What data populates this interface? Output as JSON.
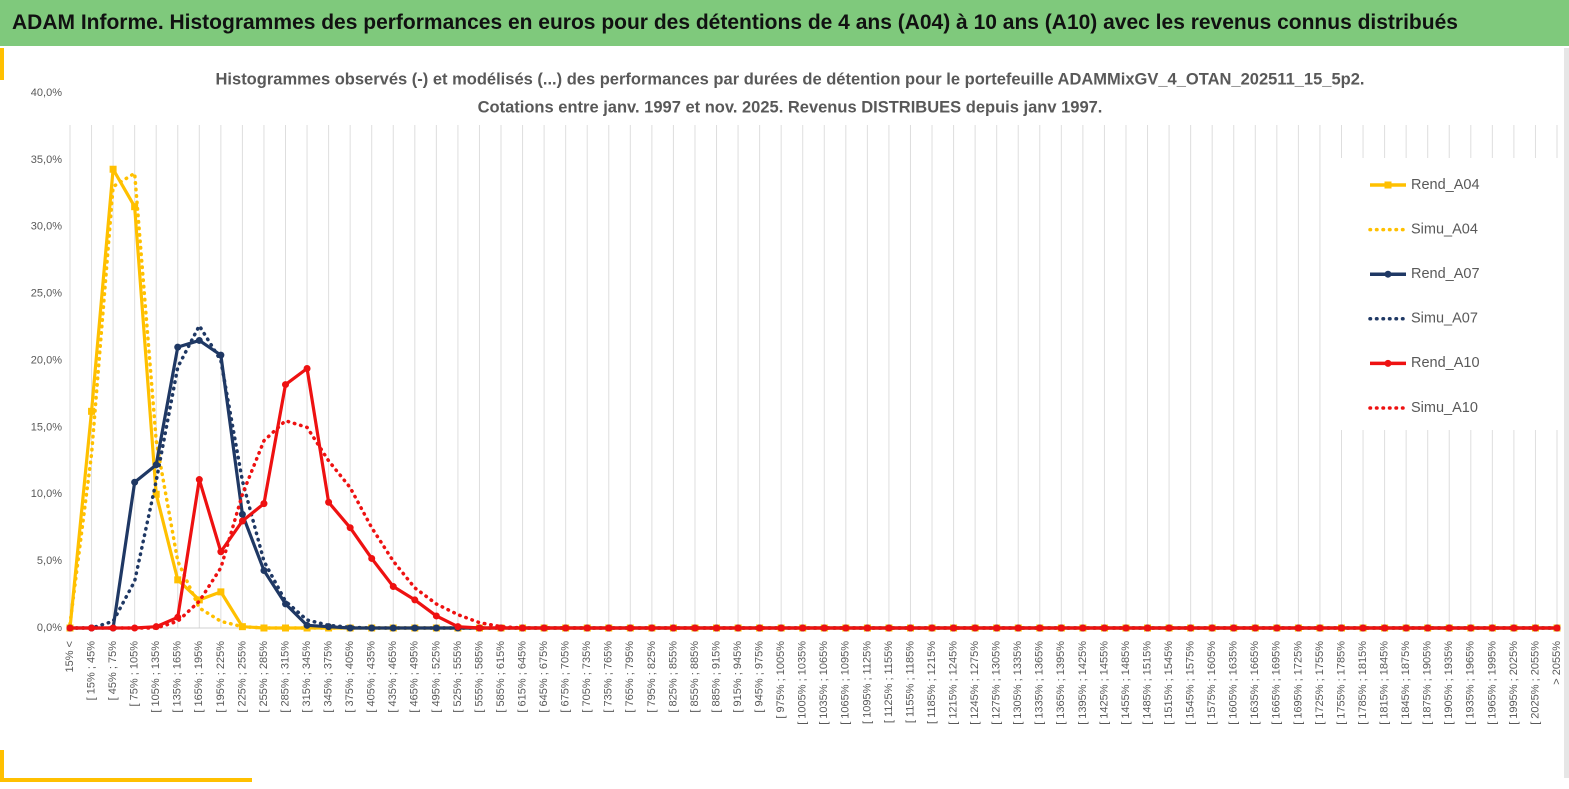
{
  "header": {
    "title": "ADAM Informe. Histogrammes des performances en euros pour des détentions de 4 ans (A04) à 10 ans (A10) avec les revenus connus distribués"
  },
  "chart_data": {
    "type": "line",
    "title": "Histogrammes observés (-) et modélisés (...) des performances par durées de détention pour le portefeuille ADAMMixGV_4_OTAN_202511_15_5p2.",
    "subtitle": "Cotations entre janv. 1997 et nov. 2025. Revenus DISTRIBUES depuis janv 1997.",
    "categories": [
      "15% <",
      "[ 15% ; 45%",
      "[ 45% ; 75%",
      "[ 75% ; 105%",
      "[ 105% ; 135%",
      "[ 135% ; 165%",
      "[ 165% ; 195%",
      "[ 195% ; 225%",
      "[ 225% ; 255%",
      "[ 255% ; 285%",
      "[ 285% ; 315%",
      "[ 315% ; 345%",
      "[ 345% ; 375%",
      "[ 375% ; 405%",
      "[ 405% ; 435%",
      "[ 435% ; 465%",
      "[ 465% ; 495%",
      "[ 495% ; 525%",
      "[ 525% ; 555%",
      "[ 555% ; 585%",
      "[ 585% ; 615%",
      "[ 615% ; 645%",
      "[ 645% ; 675%",
      "[ 675% ; 705%",
      "[ 705% ; 735%",
      "[ 735% ; 765%",
      "[ 765% ; 795%",
      "[ 795% ; 825%",
      "[ 825% ; 855%",
      "[ 855% ; 885%",
      "[ 885% ; 915%",
      "[ 915% ; 945%",
      "[ 945% ; 975%",
      "[ 975% ; 1005%",
      "[ 1005% ; 1035%",
      "[ 1035% ; 1065%",
      "[ 1065% ; 1095%",
      "[ 1095% ; 1125%",
      "[ 1125% ; 1155%",
      "[ 1155% ; 1185%",
      "[ 1185% ; 1215%",
      "[ 1215% ; 1245%",
      "[ 1245% ; 1275%",
      "[ 1275% ; 1305%",
      "[ 1305% ; 1335%",
      "[ 1335% ; 1365%",
      "[ 1365% ; 1395%",
      "[ 1395% ; 1425%",
      "[ 1425% ; 1455%",
      "[ 1455% ; 1485%",
      "[ 1485% ; 1515%",
      "[ 1515% ; 1545%",
      "[ 1545% ; 1575%",
      "[ 1575% ; 1605%",
      "[ 1605% ; 1635%",
      "[ 1635% ; 1665%",
      "[ 1665% ; 1695%",
      "[ 1695% ; 1725%",
      "[ 1725% ; 1755%",
      "[ 1755% ; 1785%",
      "[ 1785% ; 1815%",
      "[ 1815% ; 1845%",
      "[ 1845% ; 1875%",
      "[ 1875% ; 1905%",
      "[ 1905% ; 1935%",
      "[ 1935% ; 1965%",
      "[ 1965% ; 1995%",
      "[ 1995% ; 2025%",
      "[ 2025% ; 2055%",
      "> 2055%"
    ],
    "series": [
      {
        "name": "Rend_A04",
        "color": "#ffc000",
        "dash": "solid",
        "marker": "square",
        "values": [
          0,
          16.2,
          34.3,
          31.5,
          10,
          3.6,
          2.1,
          2.7,
          0.1,
          0,
          0,
          0,
          0,
          0,
          0,
          0,
          0,
          0,
          0,
          0,
          0,
          0,
          0,
          0,
          0,
          0,
          0,
          0,
          0,
          0,
          0,
          0,
          0,
          0,
          0,
          0,
          0,
          0,
          0,
          0,
          0,
          0,
          0,
          0,
          0,
          0,
          0,
          0,
          0,
          0,
          0,
          0,
          0,
          0,
          0,
          0,
          0,
          0,
          0,
          0,
          0,
          0,
          0,
          0,
          0,
          0,
          0,
          0,
          0,
          0
        ]
      },
      {
        "name": "Simu_A04",
        "color": "#ffc000",
        "dash": "dotted",
        "marker": "none",
        "values": [
          0.3,
          13,
          33,
          34,
          14,
          5,
          1.5,
          0.5,
          0.1,
          0,
          0,
          0,
          0,
          0,
          0,
          0,
          0,
          0,
          0,
          0,
          0,
          0,
          0,
          0,
          0,
          0,
          0,
          0,
          0,
          0,
          0,
          0,
          0,
          0,
          0,
          0,
          0,
          0,
          0,
          0,
          0,
          0,
          0,
          0,
          0,
          0,
          0,
          0,
          0,
          0,
          0,
          0,
          0,
          0,
          0,
          0,
          0,
          0,
          0,
          0,
          0,
          0,
          0,
          0,
          0,
          0,
          0,
          0,
          0,
          0
        ]
      },
      {
        "name": "Rend_A07",
        "color": "#1f3864",
        "dash": "solid",
        "marker": "circle",
        "values": [
          0,
          0,
          0,
          10.9,
          12.2,
          21,
          21.5,
          20.4,
          8.5,
          4.3,
          1.8,
          0.2,
          0.1,
          0,
          0,
          0,
          0,
          0,
          0,
          0,
          0,
          0,
          0,
          0,
          0,
          0,
          0,
          0,
          0,
          0,
          0,
          0,
          0,
          0,
          0,
          0,
          0,
          0,
          0,
          0,
          0,
          0,
          0,
          0,
          0,
          0,
          0,
          0,
          0,
          0,
          0,
          0,
          0,
          0,
          0,
          0,
          0,
          0,
          0,
          0,
          0,
          0,
          0,
          0,
          0,
          0,
          0,
          0,
          0,
          0
        ]
      },
      {
        "name": "Simu_A07",
        "color": "#1f3864",
        "dash": "dotted",
        "marker": "none",
        "values": [
          0,
          0,
          0.5,
          3.5,
          11,
          19.5,
          22.6,
          20,
          11,
          5,
          2,
          0.6,
          0.2,
          0.05,
          0,
          0,
          0,
          0,
          0,
          0,
          0,
          0,
          0,
          0,
          0,
          0,
          0,
          0,
          0,
          0,
          0,
          0,
          0,
          0,
          0,
          0,
          0,
          0,
          0,
          0,
          0,
          0,
          0,
          0,
          0,
          0,
          0,
          0,
          0,
          0,
          0,
          0,
          0,
          0,
          0,
          0,
          0,
          0,
          0,
          0,
          0,
          0,
          0,
          0,
          0,
          0,
          0,
          0,
          0,
          0
        ]
      },
      {
        "name": "Rend_A10",
        "color": "#ee1111",
        "dash": "solid",
        "marker": "circle",
        "values": [
          0,
          0,
          0,
          0,
          0.1,
          0.8,
          11.1,
          5.7,
          8,
          9.3,
          18.2,
          19.4,
          9.4,
          7.5,
          5.2,
          3.1,
          2.1,
          0.9,
          0.1,
          0,
          0,
          0,
          0,
          0,
          0,
          0,
          0,
          0,
          0,
          0,
          0,
          0,
          0,
          0,
          0,
          0,
          0,
          0,
          0,
          0,
          0,
          0,
          0,
          0,
          0,
          0,
          0,
          0,
          0,
          0,
          0,
          0,
          0,
          0,
          0,
          0,
          0,
          0,
          0,
          0,
          0,
          0,
          0,
          0,
          0,
          0,
          0,
          0,
          0,
          0
        ]
      },
      {
        "name": "Simu_A10",
        "color": "#ee1111",
        "dash": "dotted",
        "marker": "none",
        "values": [
          0,
          0,
          0,
          0,
          0,
          0.5,
          2,
          4.5,
          10,
          14,
          15.5,
          15,
          12.5,
          10.5,
          7.5,
          5,
          3,
          1.8,
          1,
          0.4,
          0.1,
          0,
          0,
          0,
          0,
          0,
          0,
          0,
          0,
          0,
          0,
          0,
          0,
          0,
          0,
          0,
          0,
          0,
          0,
          0,
          0,
          0,
          0,
          0,
          0,
          0,
          0,
          0,
          0,
          0,
          0,
          0,
          0,
          0,
          0,
          0,
          0,
          0,
          0,
          0,
          0,
          0,
          0,
          0,
          0,
          0,
          0,
          0,
          0,
          0
        ]
      }
    ],
    "ylim": [
      0,
      40
    ],
    "yticks": [
      {
        "value": 0,
        "label": "0,0%"
      },
      {
        "value": 5,
        "label": "5,0%"
      },
      {
        "value": 10,
        "label": "10,0%"
      },
      {
        "value": 15,
        "label": "15,0%"
      },
      {
        "value": 20,
        "label": "20,0%"
      },
      {
        "value": 25,
        "label": "25,0%"
      },
      {
        "value": 30,
        "label": "30,0%"
      },
      {
        "value": 35,
        "label": "35,0%"
      },
      {
        "value": 40,
        "label": "40,0%"
      }
    ],
    "grid": "x",
    "legend": "right"
  }
}
